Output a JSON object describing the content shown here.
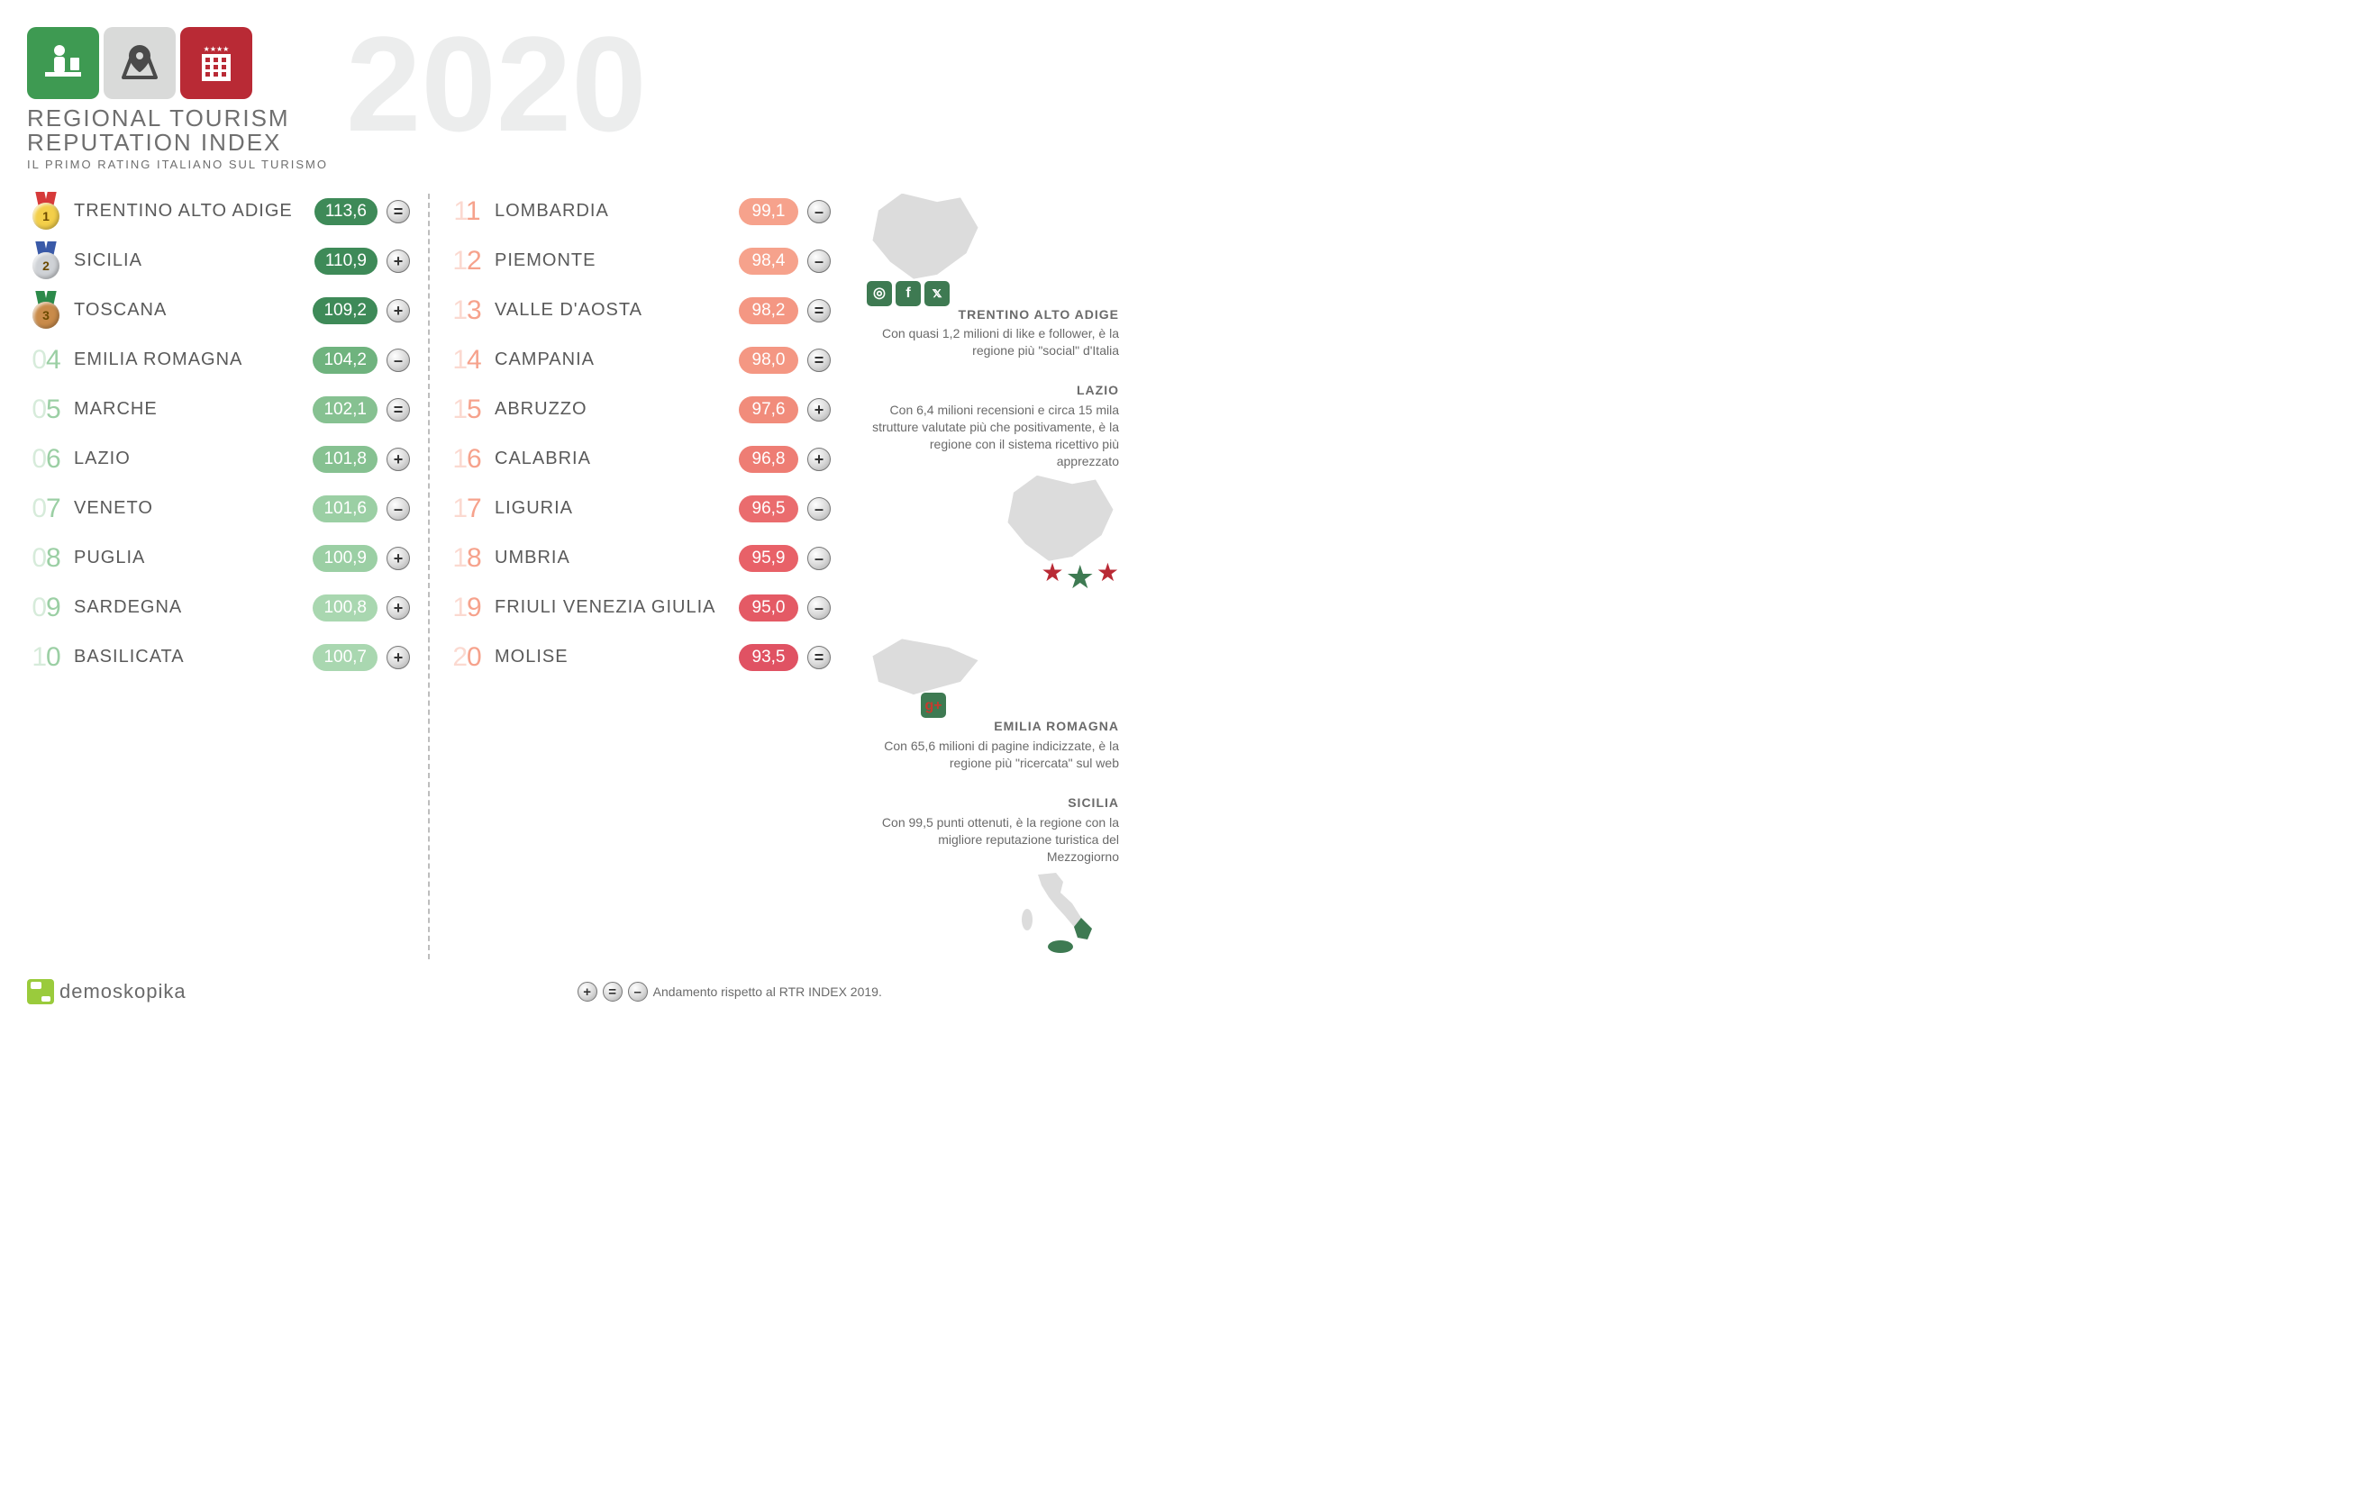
{
  "header": {
    "title_line1": "REGIONAL TOURISM",
    "title_line2": "REPUTATION INDEX",
    "subtitle": "IL PRIMO RATING ITALIANO SUL TURISMO",
    "year": "2020",
    "icon_colors": {
      "green": "#3e9a52",
      "grey": "#d9dad9",
      "red": "#b92a35"
    }
  },
  "palette": {
    "green_dark": "#3e8a58",
    "green_mid": "#6fb37e",
    "green_light": "#9bcfa4",
    "pink_light": "#f6a28c",
    "pink_mid": "#ee7d74",
    "pink_dark": "#e05263",
    "col1_rank_color": "#9bcfa4",
    "col2_rank_color": "#f6a28c",
    "trend_bg": "#d8d8d8",
    "map_grey": "#dcdcdc",
    "social_green": "#3e7a52",
    "star_outline": "#b92a35",
    "star_fill": "#3e7a52",
    "brand_green": "#9acb3c"
  },
  "medals": {
    "1": {
      "disc": "#f3cf4a",
      "ribbon": "#d63a3a"
    },
    "2": {
      "disc": "#cfd2d6",
      "ribbon": "#3a5aa8"
    },
    "3": {
      "disc": "#c98b4a",
      "ribbon": "#2c8a4a"
    }
  },
  "col1": [
    {
      "rank": 1,
      "medal": true,
      "region": "TRENTINO ALTO ADIGE",
      "score": "113,6",
      "color": "#3e8a58",
      "trend": "="
    },
    {
      "rank": 2,
      "medal": true,
      "region": "SICILIA",
      "score": "110,9",
      "color": "#3e8a58",
      "trend": "+"
    },
    {
      "rank": 3,
      "medal": true,
      "region": "TOSCANA",
      "score": "109,2",
      "color": "#3e8a58",
      "trend": "+"
    },
    {
      "rank": 4,
      "medal": false,
      "rank_txt": "04",
      "region": "EMILIA ROMAGNA",
      "score": "104,2",
      "color": "#6fb37e",
      "trend": "–"
    },
    {
      "rank": 5,
      "medal": false,
      "rank_txt": "05",
      "region": "MARCHE",
      "score": "102,1",
      "color": "#86c191",
      "trend": "="
    },
    {
      "rank": 6,
      "medal": false,
      "rank_txt": "06",
      "region": "LAZIO",
      "score": "101,8",
      "color": "#86c191",
      "trend": "+"
    },
    {
      "rank": 7,
      "medal": false,
      "rank_txt": "07",
      "region": "VENETO",
      "score": "101,6",
      "color": "#9bcfa4",
      "trend": "–"
    },
    {
      "rank": 8,
      "medal": false,
      "rank_txt": "08",
      "region": "PUGLIA",
      "score": "100,9",
      "color": "#9bcfa4",
      "trend": "+"
    },
    {
      "rank": 9,
      "medal": false,
      "rank_txt": "09",
      "region": "SARDEGNA",
      "score": "100,8",
      "color": "#a9d7b0",
      "trend": "+"
    },
    {
      "rank": 10,
      "medal": false,
      "rank_txt": "10",
      "region": "BASILICATA",
      "score": "100,7",
      "color": "#a9d7b0",
      "trend": "+"
    }
  ],
  "col2": [
    {
      "rank": 11,
      "rank_txt": "11",
      "region": "LOMBARDIA",
      "score": "99,1",
      "color": "#f6a28c",
      "trend": "–"
    },
    {
      "rank": 12,
      "rank_txt": "12",
      "region": "PIEMONTE",
      "score": "98,4",
      "color": "#f6a28c",
      "trend": "–"
    },
    {
      "rank": 13,
      "rank_txt": "13",
      "region": "VALLE D'AOSTA",
      "score": "98,2",
      "color": "#f49783",
      "trend": "="
    },
    {
      "rank": 14,
      "rank_txt": "14",
      "region": "CAMPANIA",
      "score": "98,0",
      "color": "#f49783",
      "trend": "="
    },
    {
      "rank": 15,
      "rank_txt": "15",
      "region": "ABRUZZO",
      "score": "97,6",
      "color": "#f18c7b",
      "trend": "+"
    },
    {
      "rank": 16,
      "rank_txt": "16",
      "region": "CALABRIA",
      "score": "96,8",
      "color": "#ee7d74",
      "trend": "+"
    },
    {
      "rank": 17,
      "rank_txt": "17",
      "region": "LIGURIA",
      "score": "96,5",
      "color": "#ea6c6e",
      "trend": "–"
    },
    {
      "rank": 18,
      "rank_txt": "18",
      "region": "UMBRIA",
      "score": "95,9",
      "color": "#e86168",
      "trend": "–"
    },
    {
      "rank": 19,
      "rank_txt": "19",
      "region": "FRIULI VENEZIA GIULIA",
      "score": "95,0",
      "color": "#e45a65",
      "trend": "–"
    },
    {
      "rank": 20,
      "rank_txt": "20",
      "region": "MOLISE",
      "score": "93,5",
      "color": "#e05263",
      "trend": "="
    }
  ],
  "side": {
    "trentino": {
      "title": "TRENTINO ALTO ADIGE",
      "body": "Con quasi 1,2 milioni di like e follower, è la regione più \"social\" d'Italia",
      "align": "left"
    },
    "lazio": {
      "title": "LAZIO",
      "body": "Con 6,4 milioni recensioni e circa 15 mila strutture valutate più che positivamente, è la regione con il sistema ricettivo più apprezzato",
      "align": "right"
    },
    "emilia": {
      "title": "EMILIA ROMAGNA",
      "body": "Con 65,6 milioni di pagine indicizzate, è la regione più \"ricercata\" sul web",
      "align": "left"
    },
    "sicilia": {
      "title": "SICILIA",
      "body": "Con 99,5 punti ottenuti, è la regione con la migliore reputazione turistica del Mezzogiorno",
      "align": "right"
    }
  },
  "footer": {
    "brand": "demoskopika",
    "legend": "Andamento rispetto al RTR INDEX 2019."
  }
}
